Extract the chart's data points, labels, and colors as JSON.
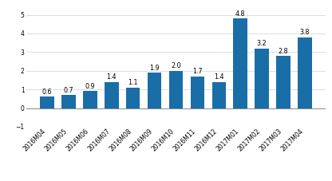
{
  "categories": [
    "2016M04",
    "2016M05",
    "2016M06",
    "2016M07",
    "2016M08",
    "2016M09",
    "2016M10",
    "2016M11",
    "2016M12",
    "2017M01",
    "2017M02",
    "2017M03",
    "2017M04"
  ],
  "values": [
    0.6,
    0.7,
    0.9,
    1.4,
    1.1,
    1.9,
    2.0,
    1.7,
    1.4,
    4.8,
    3.2,
    2.8,
    3.8
  ],
  "bar_color": "#1a6ea8",
  "ylim": [
    -1,
    5.5
  ],
  "yticks": [
    -1,
    0,
    1,
    2,
    3,
    4,
    5
  ],
  "label_fontsize": 5.8,
  "tick_fontsize": 5.5,
  "background_color": "#ffffff",
  "grid_color": "#d0d0d0"
}
